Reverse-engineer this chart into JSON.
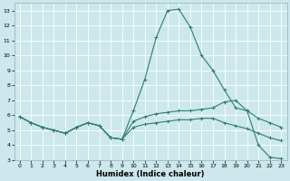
{
  "xlabel": "Humidex (Indice chaleur)",
  "bg_color": "#cce8ec",
  "grid_color": "#ffffff",
  "line_color": "#2e7d6e",
  "xlim": [
    -0.5,
    23.5
  ],
  "ylim": [
    3,
    13.5
  ],
  "xticks": [
    0,
    1,
    2,
    3,
    4,
    5,
    6,
    7,
    8,
    9,
    10,
    11,
    12,
    13,
    14,
    15,
    16,
    17,
    18,
    19,
    20,
    21,
    22,
    23
  ],
  "yticks": [
    3,
    4,
    5,
    6,
    7,
    8,
    9,
    10,
    11,
    12,
    13
  ],
  "line1_x": [
    0,
    1,
    2,
    3,
    4,
    5,
    6,
    7,
    8,
    9,
    10,
    11,
    12,
    13,
    14,
    15,
    16,
    17,
    18,
    19,
    20,
    21,
    22,
    23
  ],
  "line1_y": [
    5.9,
    5.5,
    5.2,
    5.0,
    4.8,
    5.2,
    5.5,
    5.3,
    4.5,
    4.4,
    6.3,
    8.4,
    11.2,
    13.0,
    13.1,
    11.9,
    10.0,
    9.0,
    7.7,
    6.5,
    6.3,
    4.0,
    3.2,
    3.1
  ],
  "line2_x": [
    0,
    1,
    2,
    3,
    4,
    5,
    6,
    7,
    8,
    9,
    10,
    11,
    12,
    13,
    14,
    15,
    16,
    17,
    18,
    19,
    20,
    21,
    22,
    23
  ],
  "line2_y": [
    5.9,
    5.5,
    5.2,
    5.0,
    4.8,
    5.2,
    5.5,
    5.3,
    4.5,
    4.4,
    5.6,
    5.9,
    6.1,
    6.2,
    6.3,
    6.3,
    6.4,
    6.5,
    6.9,
    7.0,
    6.3,
    5.8,
    5.5,
    5.2
  ],
  "line3_x": [
    0,
    1,
    2,
    3,
    4,
    5,
    6,
    7,
    8,
    9,
    10,
    11,
    12,
    13,
    14,
    15,
    16,
    17,
    18,
    19,
    20,
    21,
    22,
    23
  ],
  "line3_y": [
    5.9,
    5.5,
    5.2,
    5.0,
    4.8,
    5.2,
    5.5,
    5.3,
    4.5,
    4.4,
    5.2,
    5.4,
    5.5,
    5.6,
    5.7,
    5.7,
    5.8,
    5.8,
    5.5,
    5.3,
    5.1,
    4.8,
    4.5,
    4.3
  ]
}
